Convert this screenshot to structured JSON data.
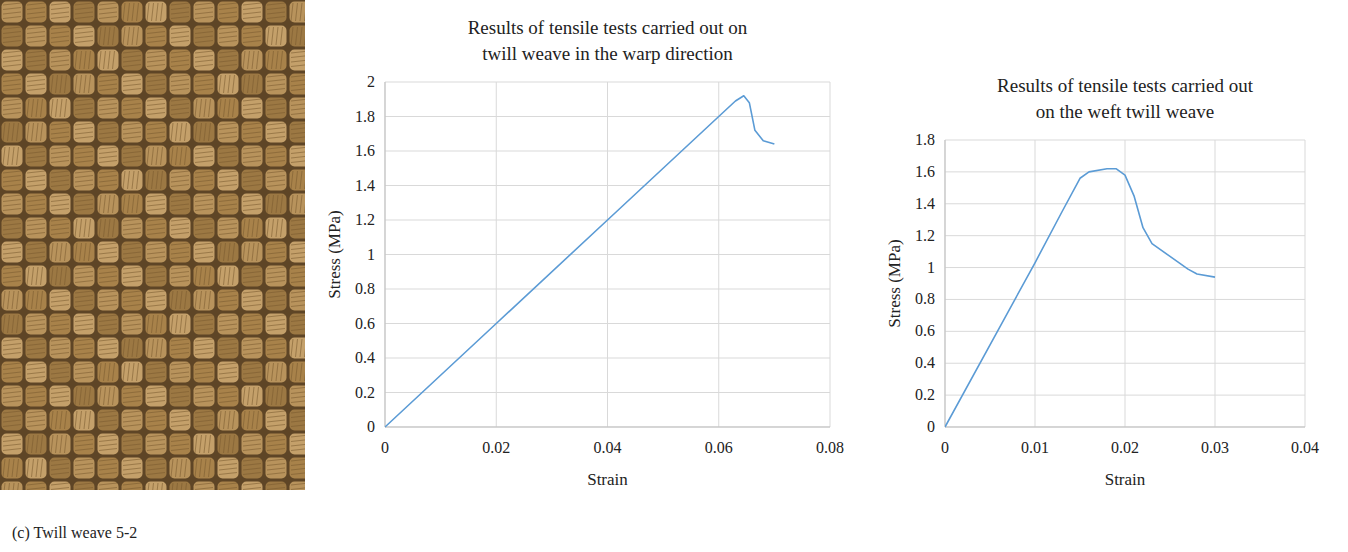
{
  "figure": {
    "caption": "(c) Twill weave 5-2"
  },
  "chart_data": [
    {
      "type": "line",
      "title": "Results of tensile tests carried out on twill weave in the warp direction",
      "x_label": "Strain",
      "y_label": "Stress (MPa)",
      "x": [
        0,
        0.02,
        0.04,
        0.06,
        0.063,
        0.0645,
        0.0655,
        0.0665,
        0.068,
        0.07
      ],
      "values": [
        0,
        0.6,
        1.2,
        1.8,
        1.89,
        1.92,
        1.88,
        1.72,
        1.66,
        1.64
      ],
      "color": "#5b9bd5",
      "xlim": [
        0,
        0.08
      ],
      "xticks": [
        0,
        0.02,
        0.04,
        0.06,
        0.08
      ],
      "ylim": [
        0,
        2
      ],
      "yticks": [
        0,
        0.2,
        0.4,
        0.6,
        0.8,
        1,
        1.2,
        1.4,
        1.6,
        1.8,
        2
      ],
      "grid": true
    },
    {
      "type": "line",
      "title": "Results of tensile tests carried out on the weft twill weave",
      "x_label": "Strain",
      "y_label": "Stress (MPa)",
      "x": [
        0,
        0.01,
        0.013,
        0.015,
        0.016,
        0.018,
        0.019,
        0.02,
        0.021,
        0.022,
        0.023,
        0.025,
        0.027,
        0.028,
        0.03
      ],
      "values": [
        0,
        1.03,
        1.35,
        1.56,
        1.6,
        1.62,
        1.62,
        1.58,
        1.45,
        1.25,
        1.15,
        1.07,
        0.99,
        0.96,
        0.94
      ],
      "color": "#5b9bd5",
      "xlim": [
        0,
        0.04
      ],
      "xticks": [
        0,
        0.01,
        0.02,
        0.03,
        0.04
      ],
      "ylim": [
        0,
        1.8
      ],
      "yticks": [
        0,
        0.2,
        0.4,
        0.6,
        0.8,
        1,
        1.2,
        1.4,
        1.6,
        1.8
      ],
      "grid": true
    }
  ]
}
